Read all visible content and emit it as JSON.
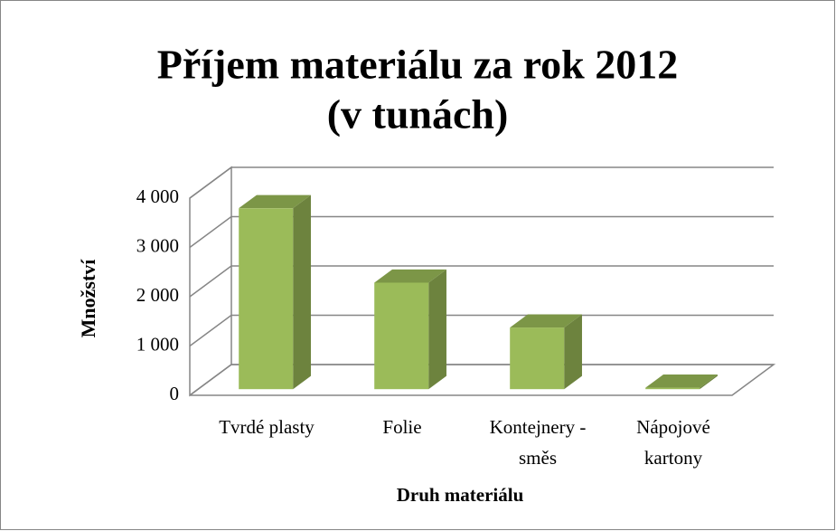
{
  "chart_data": {
    "type": "bar",
    "title": "Příjem materiálu za rok 2012",
    "subtitle": "(v tunách)",
    "x_label": "Druh materiálu",
    "y_label": "Množství",
    "categories": [
      "Tvrdé plasty",
      "Folie",
      "Kontejnery - směs",
      "Nápojové kartony"
    ],
    "values": [
      3670,
      2160,
      1250,
      30
    ],
    "color": "#9bbb59",
    "ylim": [
      0,
      4000
    ],
    "yticks": [
      0,
      {
        "value": 1000,
        "label": "1 000"
      },
      {
        "value": 2000,
        "label": "2 000"
      },
      {
        "value": 3000,
        "label": "3 000"
      },
      {
        "value": 4000,
        "label": "4 000"
      }
    ],
    "grid": true
  }
}
